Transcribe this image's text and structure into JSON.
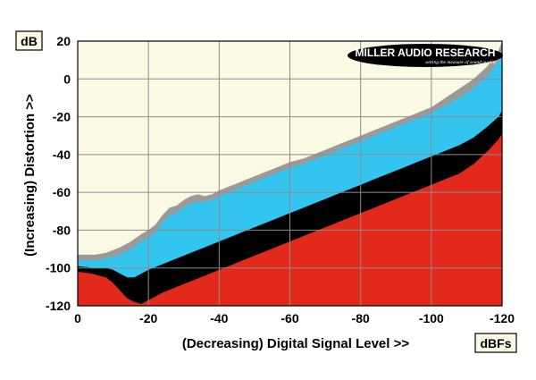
{
  "chart_data": {
    "type": "area",
    "xlabel": "(Decreasing) Digital Signal Level >>",
    "ylabel": "(Increasing) Distortion >>",
    "x_unit": "dBFs",
    "y_unit": "dB",
    "xlim": [
      0,
      -120
    ],
    "ylim": [
      -120,
      20
    ],
    "x_ticks": [
      "0",
      "-20",
      "-40",
      "-60",
      "-80",
      "-100",
      "-120"
    ],
    "y_ticks": [
      "20",
      "0",
      "-20",
      "-40",
      "-60",
      "-80",
      "-100",
      "-120"
    ],
    "grid": true,
    "background_color": "#fbf8e4",
    "series": [
      {
        "color": "#9a9a9a",
        "x": [
          0,
          -5,
          -8,
          -12,
          -15,
          -18,
          -20,
          -22,
          -24,
          -26,
          -28,
          -30,
          -32,
          -34,
          -36,
          -38,
          -40,
          -44,
          -48,
          -52,
          -56,
          -60,
          -64,
          -68,
          -72,
          -76,
          -80,
          -84,
          -88,
          -92,
          -96,
          -100,
          -104,
          -108,
          -112,
          -116,
          -119,
          -120
        ],
        "y": [
          -93,
          -93,
          -92,
          -89,
          -86,
          -82,
          -80,
          -77,
          -72,
          -68,
          -67,
          -64,
          -62,
          -61,
          -62,
          -61,
          -59,
          -56,
          -53,
          -50,
          -47,
          -44,
          -42,
          -39,
          -36,
          -33,
          -30,
          -27,
          -24,
          -21,
          -18,
          -15,
          -10,
          -5,
          0,
          7,
          15,
          20
        ]
      },
      {
        "color": "#33c4f0",
        "x": [
          0,
          -5,
          -8,
          -12,
          -15,
          -18,
          -20,
          -22,
          -24,
          -26,
          -28,
          -30,
          -32,
          -34,
          -36,
          -38,
          -40,
          -44,
          -48,
          -52,
          -56,
          -60,
          -64,
          -68,
          -72,
          -76,
          -80,
          -84,
          -88,
          -92,
          -96,
          -100,
          -104,
          -108,
          -112,
          -116,
          -119,
          -120
        ],
        "y": [
          -96,
          -96,
          -95,
          -93,
          -90,
          -86,
          -84,
          -81,
          -76,
          -72,
          -71,
          -68,
          -66,
          -65,
          -65,
          -64,
          -62,
          -59,
          -56,
          -53,
          -50,
          -47,
          -45,
          -42,
          -39,
          -36,
          -33,
          -30,
          -27,
          -24,
          -21,
          -18,
          -14,
          -10,
          -5,
          2,
          9,
          12
        ]
      },
      {
        "color": "#000000",
        "x": [
          0,
          -5,
          -8,
          -10,
          -12,
          -14,
          -16,
          -18,
          -20,
          -24,
          -28,
          -32,
          -36,
          -40,
          -44,
          -48,
          -52,
          -56,
          -60,
          -64,
          -68,
          -72,
          -76,
          -80,
          -84,
          -88,
          -92,
          -96,
          -100,
          -104,
          -108,
          -112,
          -116,
          -119,
          -120
        ],
        "y": [
          -99,
          -100,
          -100,
          -101,
          -103,
          -105,
          -105,
          -103,
          -101,
          -98,
          -95,
          -92,
          -89,
          -86,
          -83,
          -80,
          -77,
          -74,
          -71,
          -68,
          -65,
          -62,
          -59,
          -56,
          -53,
          -50,
          -47,
          -44,
          -41,
          -38,
          -35,
          -31,
          -25,
          -20,
          -17
        ]
      },
      {
        "color": "#e3281c",
        "x": [
          0,
          -4,
          -8,
          -10,
          -12,
          -14,
          -16,
          -18,
          -20,
          -24,
          -28,
          -32,
          -36,
          -40,
          -44,
          -48,
          -52,
          -56,
          -60,
          -64,
          -68,
          -72,
          -76,
          -80,
          -84,
          -88,
          -92,
          -96,
          -100,
          -104,
          -108,
          -112,
          -116,
          -119,
          -120
        ],
        "y": [
          -102,
          -103,
          -105,
          -108,
          -112,
          -116,
          -118,
          -119,
          -117,
          -113,
          -110,
          -107,
          -104,
          -101,
          -98,
          -95,
          -92,
          -89,
          -86,
          -83,
          -80,
          -77,
          -74,
          -71,
          -68,
          -65,
          -62,
          -59,
          -56,
          -53,
          -50,
          -45,
          -38,
          -32,
          -29
        ]
      }
    ]
  },
  "logo": {
    "name": "MILLER AUDIO RESEARCH",
    "tagline": "setting the measure of sound quality"
  }
}
